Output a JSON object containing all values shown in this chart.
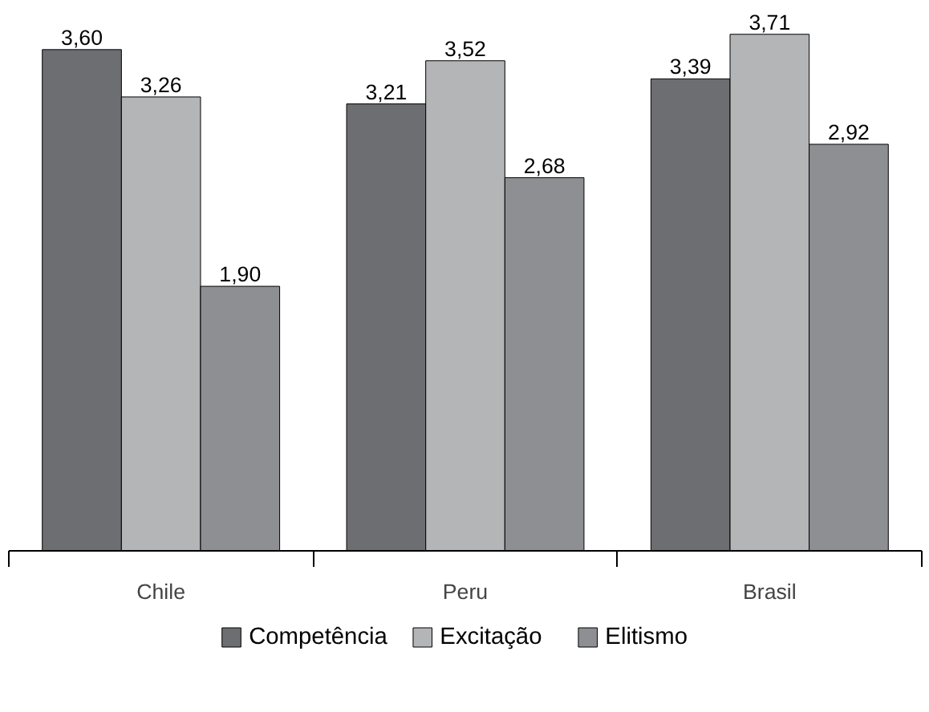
{
  "chart_data": {
    "type": "bar",
    "categories": [
      "Chile",
      "Peru",
      "Brasil"
    ],
    "series": [
      {
        "name": "Competência",
        "color": "#6d6e71",
        "values": [
          3.6,
          3.21,
          3.39
        ],
        "value_labels": [
          "3,60",
          "3,21",
          "3,39"
        ]
      },
      {
        "name": "Excitação",
        "color": "#b4b5b7",
        "values": [
          3.26,
          3.52,
          3.71
        ],
        "value_labels": [
          "3,26",
          "3,52",
          "3,71"
        ]
      },
      {
        "name": "Elitismo",
        "color": "#8e8f92",
        "values": [
          1.9,
          2.68,
          2.92
        ],
        "value_labels": [
          "1,90",
          "2,68",
          "2,92"
        ]
      }
    ],
    "legend": "bottom"
  }
}
